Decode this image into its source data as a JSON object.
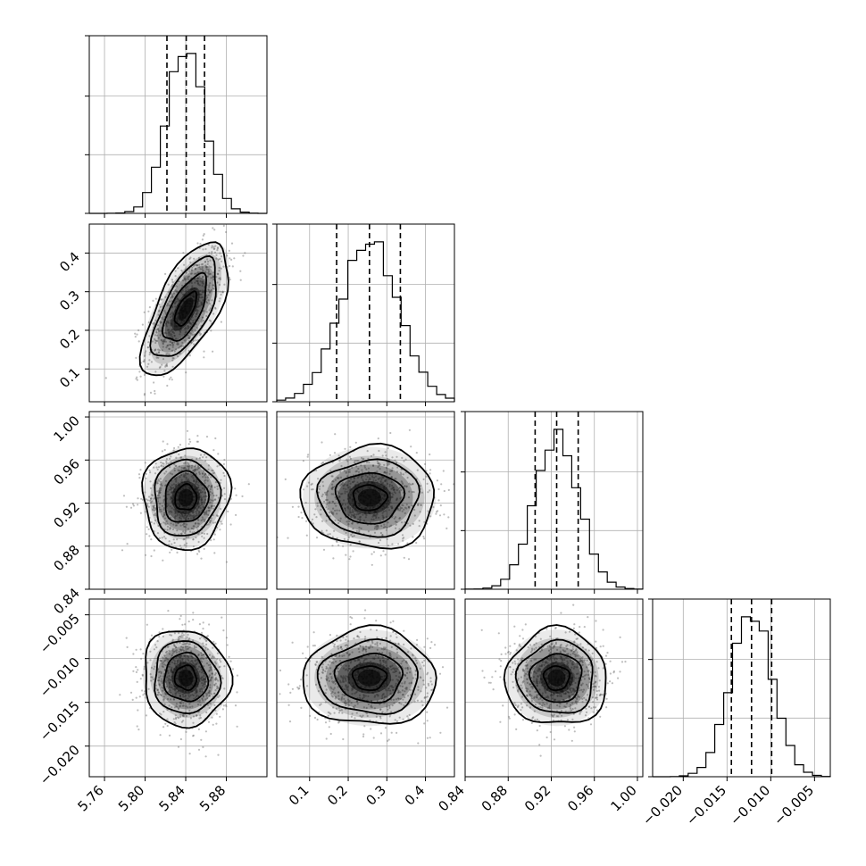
{
  "chart_data": {
    "type": "corner",
    "params": [
      {
        "mean": 5.84,
        "sd": 0.0185,
        "range": [
          5.745,
          5.92
        ],
        "ticks": [
          "5.76",
          "5.80",
          "5.84",
          "5.88"
        ],
        "quantiles": [
          5.8215,
          5.8405,
          5.8585
        ]
      },
      {
        "mean": 0.255,
        "sd": 0.075,
        "range": [
          0.015,
          0.475
        ],
        "ticks": [
          "0.1",
          "0.2",
          "0.3",
          "0.4"
        ],
        "quantiles": [
          0.17,
          0.255,
          0.335
        ]
      },
      {
        "mean": 0.925,
        "sd": 0.0205,
        "range": [
          0.84,
          1.005
        ],
        "ticks": [
          "0.84",
          "0.88",
          "0.92",
          "0.96",
          "1.00"
        ],
        "quantiles": [
          0.905,
          0.925,
          0.945
        ]
      },
      {
        "mean": -0.0122,
        "sd": 0.0024,
        "range": [
          -0.0235,
          -0.0032
        ],
        "ticks": [
          "−0.020",
          "−0.015",
          "−0.010",
          "−0.005"
        ],
        "quantiles": [
          -0.0145,
          -0.0122,
          -0.0099
        ]
      }
    ],
    "correlations": [
      {
        "i": 1,
        "j": 0,
        "rho": 0.65
      },
      {
        "i": 2,
        "j": 0,
        "rho": 0.05
      },
      {
        "i": 2,
        "j": 1,
        "rho": 0.0
      },
      {
        "i": 3,
        "j": 0,
        "rho": -0.05
      },
      {
        "i": 3,
        "j": 1,
        "rho": 0.0
      },
      {
        "i": 3,
        "j": 2,
        "rho": 0.0
      }
    ],
    "histogram_bins": 20,
    "contour_levels_sigma": [
      0.5,
      1.0,
      1.5,
      2.0
    ],
    "grid": true,
    "colors": {
      "density": "#000000",
      "points": "#6e6e6e",
      "grid": "#b0b0b0"
    }
  }
}
